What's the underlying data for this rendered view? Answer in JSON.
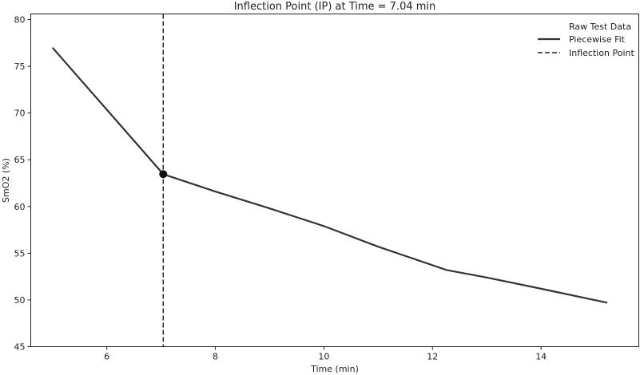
{
  "chart_data": {
    "type": "line",
    "title": "Inflection Point (IP) at Time = 7.04 min",
    "xlabel": "Time (min)",
    "ylabel": "SmO2 (%)",
    "xlim": [
      4.6,
      15.8
    ],
    "ylim": [
      45,
      80.6
    ],
    "xticks": [
      6,
      8,
      10,
      12,
      14
    ],
    "yticks": [
      45,
      50,
      55,
      60,
      65,
      70,
      75,
      80
    ],
    "grid": false,
    "legend_position": "top-right",
    "legend": [
      "Raw Test Data",
      "Piecewise Fit",
      "Inflection Point"
    ],
    "series": [
      {
        "name": "Raw Test Data",
        "x": [],
        "y": []
      },
      {
        "name": "Piecewise Fit",
        "x": [
          5.0,
          7.04,
          8.0,
          9.0,
          10.0,
          11.0,
          12.26,
          13.0,
          14.0,
          15.22
        ],
        "y": [
          77.0,
          63.46,
          61.6,
          59.8,
          57.9,
          55.7,
          53.2,
          52.4,
          51.2,
          49.7
        ]
      }
    ],
    "inflection_point": {
      "x": 7.04,
      "y": 63.46
    },
    "colors": {
      "line": "#333333",
      "marker": "#111111"
    }
  }
}
